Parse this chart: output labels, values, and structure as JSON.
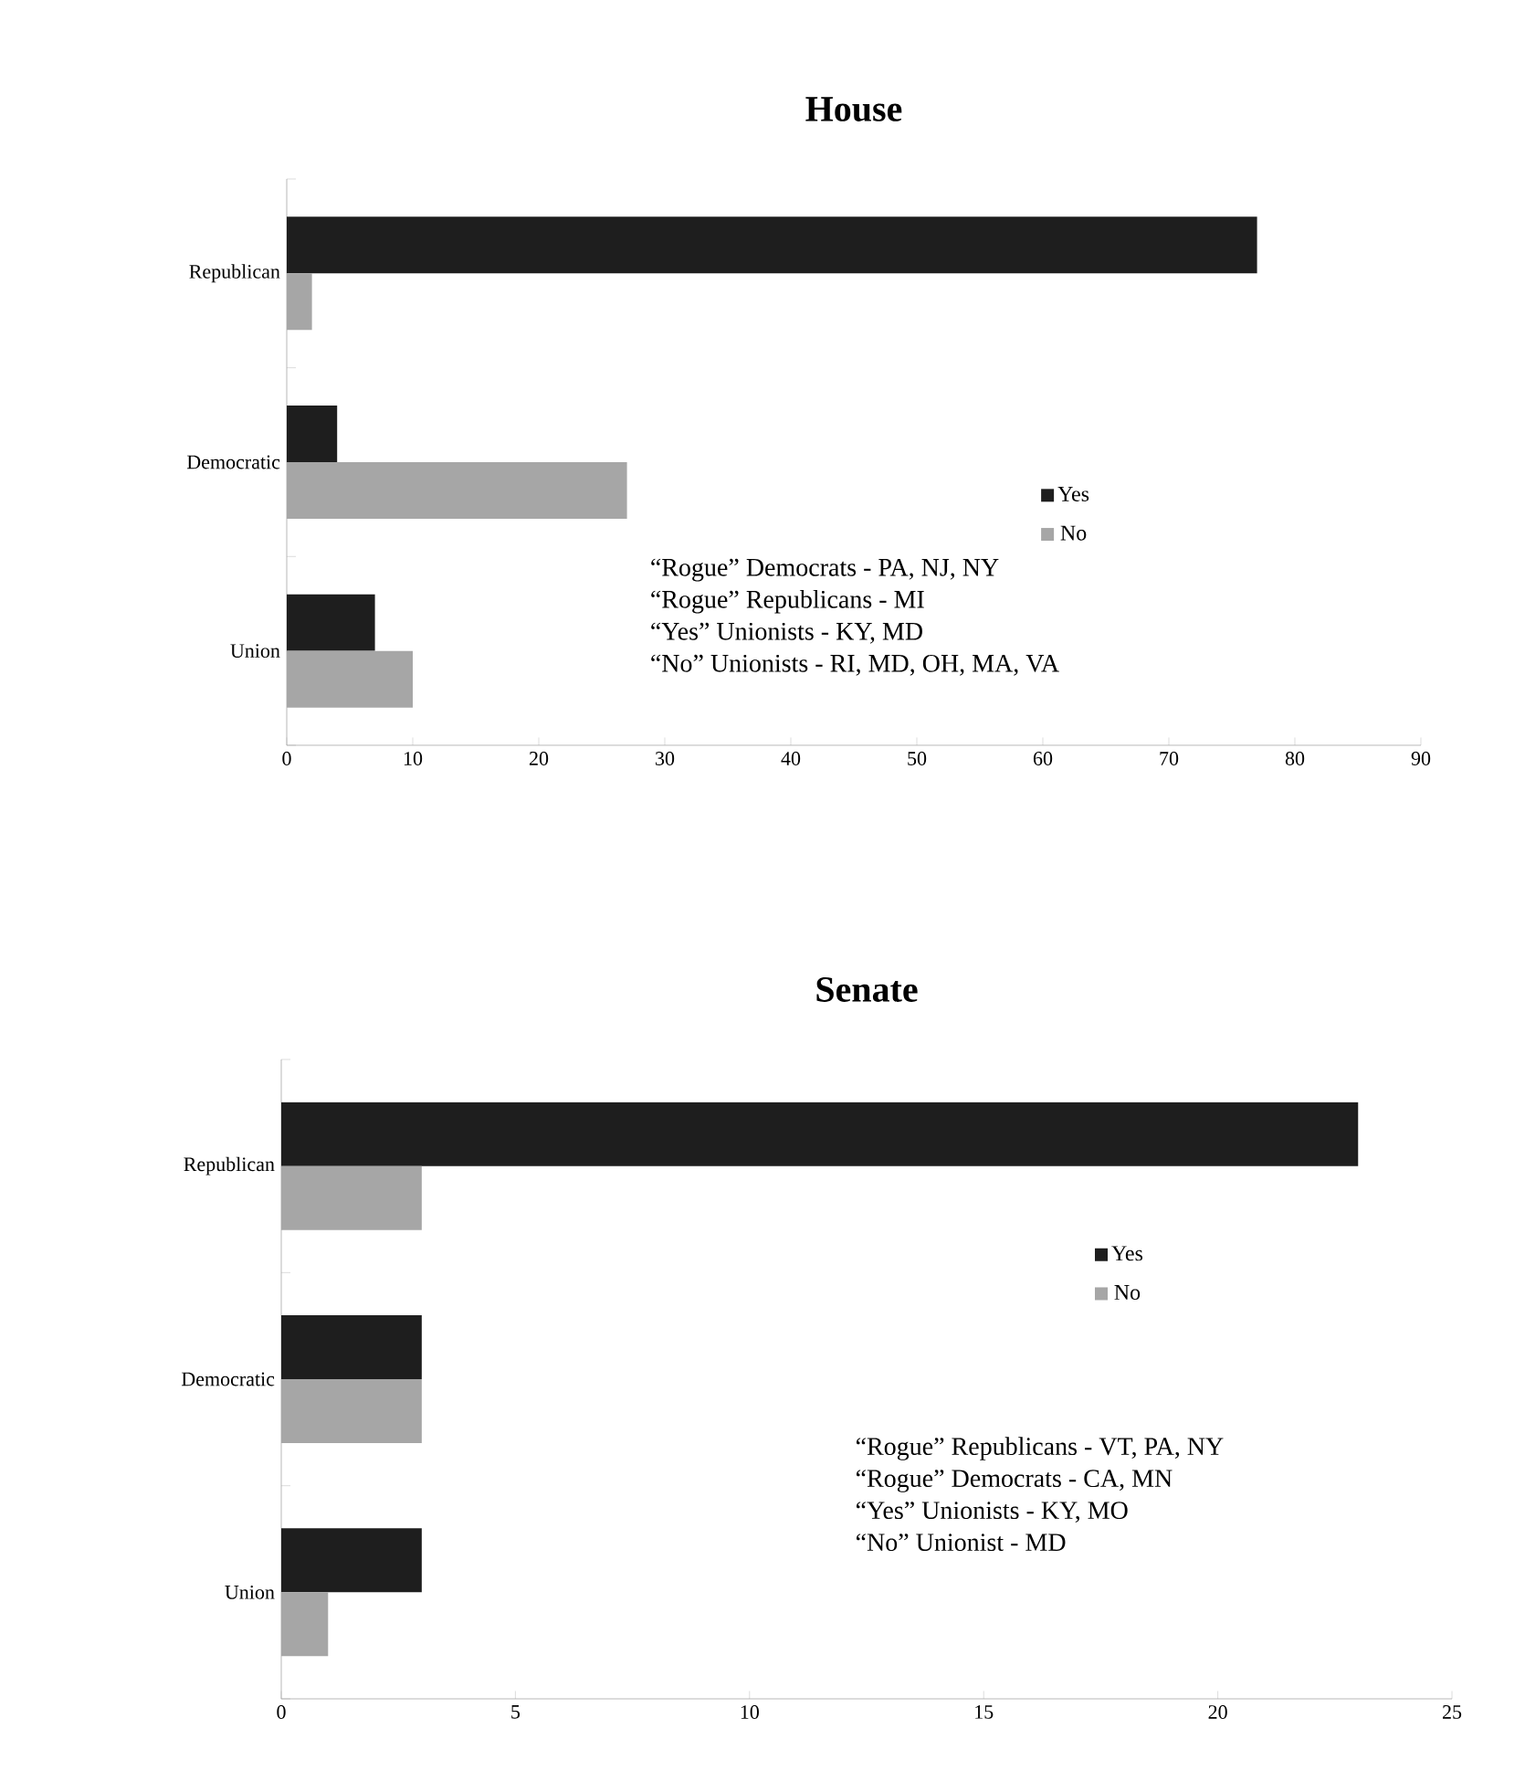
{
  "chart_data": [
    {
      "type": "bar",
      "orientation": "horizontal",
      "title": "House",
      "categories": [
        "Republican",
        "Democratic",
        "Union"
      ],
      "series": [
        {
          "name": "Yes",
          "color": "#1e1e1e",
          "values": [
            77,
            4,
            7
          ]
        },
        {
          "name": "No",
          "color": "#a6a6a6",
          "values": [
            2,
            27,
            10
          ]
        }
      ],
      "xlim": [
        0,
        90
      ],
      "xticks": [
        0,
        10,
        20,
        30,
        40,
        50,
        60,
        70,
        80,
        90
      ],
      "grid": false,
      "legend": "right",
      "annotations": [
        "“Rogue”  Democrats - PA, NJ, NY",
        "“Rogue”  Republicans - MI",
        "“Yes” Unionists - KY, MD",
        "“No”   Unionists - RI, MD, OH, MA, VA"
      ]
    },
    {
      "type": "bar",
      "orientation": "horizontal",
      "title": "Senate",
      "categories": [
        "Republican",
        "Democratic",
        "Union"
      ],
      "series": [
        {
          "name": "Yes",
          "color": "#1e1e1e",
          "values": [
            23,
            3,
            3
          ]
        },
        {
          "name": "No",
          "color": "#a6a6a6",
          "values": [
            3,
            3,
            1
          ]
        }
      ],
      "xlim": [
        0,
        25
      ],
      "xticks": [
        0,
        5,
        10,
        15,
        20,
        25
      ],
      "grid": false,
      "legend": "top right",
      "annotations": [
        "“Rogue”  Republicans -  VT, PA, NY",
        "“Rogue”  Democrats - CA, MN",
        "“Yes” Unionists - KY, MO",
        "“No” Unionist - MD"
      ]
    }
  ]
}
